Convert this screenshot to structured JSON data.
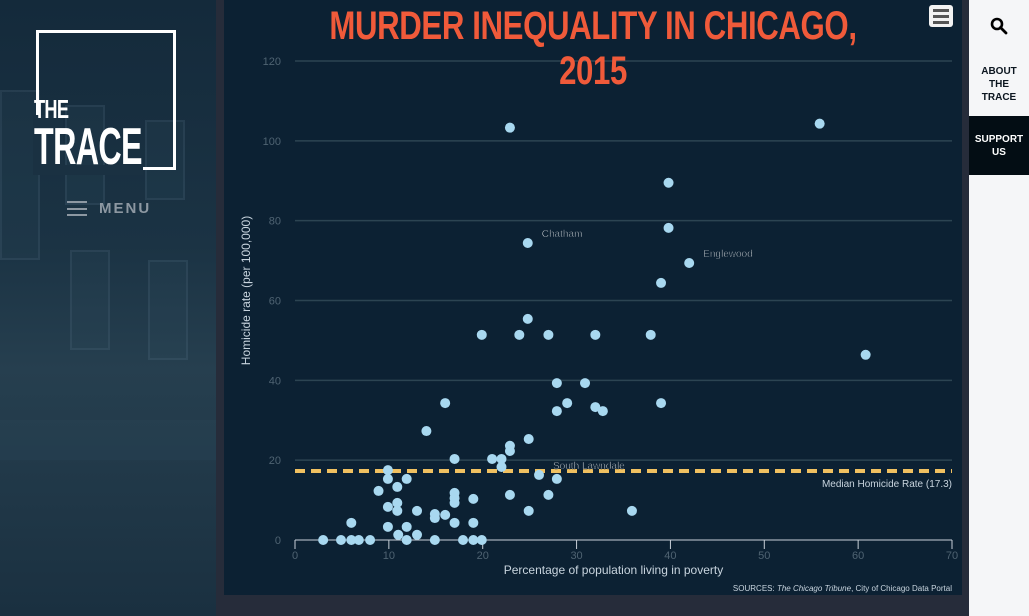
{
  "brand": {
    "line1": "THE",
    "line2": "TRACE"
  },
  "menu_label": "MENU",
  "right_nav": {
    "about": "ABOUT THE TRACE",
    "support": "SUPPORT US"
  },
  "colors": {
    "title": "#f05a3a",
    "point": "#a8d8f0",
    "median": "#f0c060",
    "panel": "#0c2133"
  },
  "chart_data": {
    "type": "scatter",
    "title": "MURDER INEQUALITY IN CHICAGO, 2015",
    "xlabel": "Percentage of population living in poverty",
    "ylabel": "Homicide rate (per 100,000)",
    "xlim": [
      0,
      70
    ],
    "ylim": [
      0,
      120
    ],
    "xticks": [
      0,
      10,
      20,
      30,
      40,
      50,
      60,
      70
    ],
    "yticks": [
      0,
      20,
      40,
      60,
      80,
      100,
      120
    ],
    "grid": "horizontal",
    "median": {
      "value": 17.3,
      "label": "Median Homicide Rate (17.3)"
    },
    "annotations": [
      {
        "text": "Chatham",
        "x": 24.8,
        "y": 74.4
      },
      {
        "text": "Englewood",
        "x": 42.0,
        "y": 69.4
      },
      {
        "text": "South Lawndale",
        "x": 26.0,
        "y": 16.3
      }
    ],
    "sources": {
      "prefix": "SOURCES: ",
      "italic": "The Chicago Tribune",
      "rest": ", City of Chicago Data Portal"
    },
    "points": [
      [
        3,
        0
      ],
      [
        4.9,
        0
      ],
      [
        6,
        0
      ],
      [
        6.8,
        0
      ],
      [
        8,
        0
      ],
      [
        11.9,
        0
      ],
      [
        14.9,
        0
      ],
      [
        17.9,
        0
      ],
      [
        19,
        0
      ],
      [
        19.9,
        0
      ],
      [
        11,
        1.3
      ],
      [
        13,
        1.3
      ],
      [
        9.9,
        3.3
      ],
      [
        11.9,
        3.3
      ],
      [
        6,
        4.3
      ],
      [
        17,
        4.3
      ],
      [
        19,
        4.3
      ],
      [
        14.9,
        5.5
      ],
      [
        14.9,
        6.5
      ],
      [
        16,
        6.3
      ],
      [
        10.9,
        7.3
      ],
      [
        13,
        7.3
      ],
      [
        24.9,
        7.3
      ],
      [
        35.9,
        7.3
      ],
      [
        9.9,
        8.3
      ],
      [
        10.9,
        9.3
      ],
      [
        17,
        9.3
      ],
      [
        17,
        10.5
      ],
      [
        19,
        10.3
      ],
      [
        17,
        11.8
      ],
      [
        22.9,
        11.3
      ],
      [
        27,
        11.3
      ],
      [
        8.9,
        12.3
      ],
      [
        10.9,
        13.3
      ],
      [
        9.9,
        15.3
      ],
      [
        11.9,
        15.3
      ],
      [
        27.9,
        15.3
      ],
      [
        26,
        16.3
      ],
      [
        9.9,
        17.5
      ],
      [
        22,
        18.3
      ],
      [
        17,
        20.3
      ],
      [
        21,
        20.3
      ],
      [
        22,
        20.3
      ],
      [
        22.9,
        22.3
      ],
      [
        22.9,
        23.6
      ],
      [
        24.9,
        25.3
      ],
      [
        14,
        27.3
      ],
      [
        27.9,
        32.3
      ],
      [
        32.8,
        32.3
      ],
      [
        32,
        33.3
      ],
      [
        16,
        34.3
      ],
      [
        29,
        34.3
      ],
      [
        39,
        34.3
      ],
      [
        27.9,
        39.3
      ],
      [
        30.9,
        39.3
      ],
      [
        60.8,
        46.4
      ],
      [
        19.9,
        51.4
      ],
      [
        23.9,
        51.4
      ],
      [
        27,
        51.4
      ],
      [
        32,
        51.4
      ],
      [
        37.9,
        51.4
      ],
      [
        24.8,
        55.4
      ],
      [
        39,
        64.4
      ],
      [
        42,
        69.4
      ],
      [
        24.8,
        74.4
      ],
      [
        39.8,
        78.2
      ],
      [
        39.8,
        89.5
      ],
      [
        22.9,
        103.3
      ],
      [
        55.9,
        104.3
      ]
    ]
  }
}
